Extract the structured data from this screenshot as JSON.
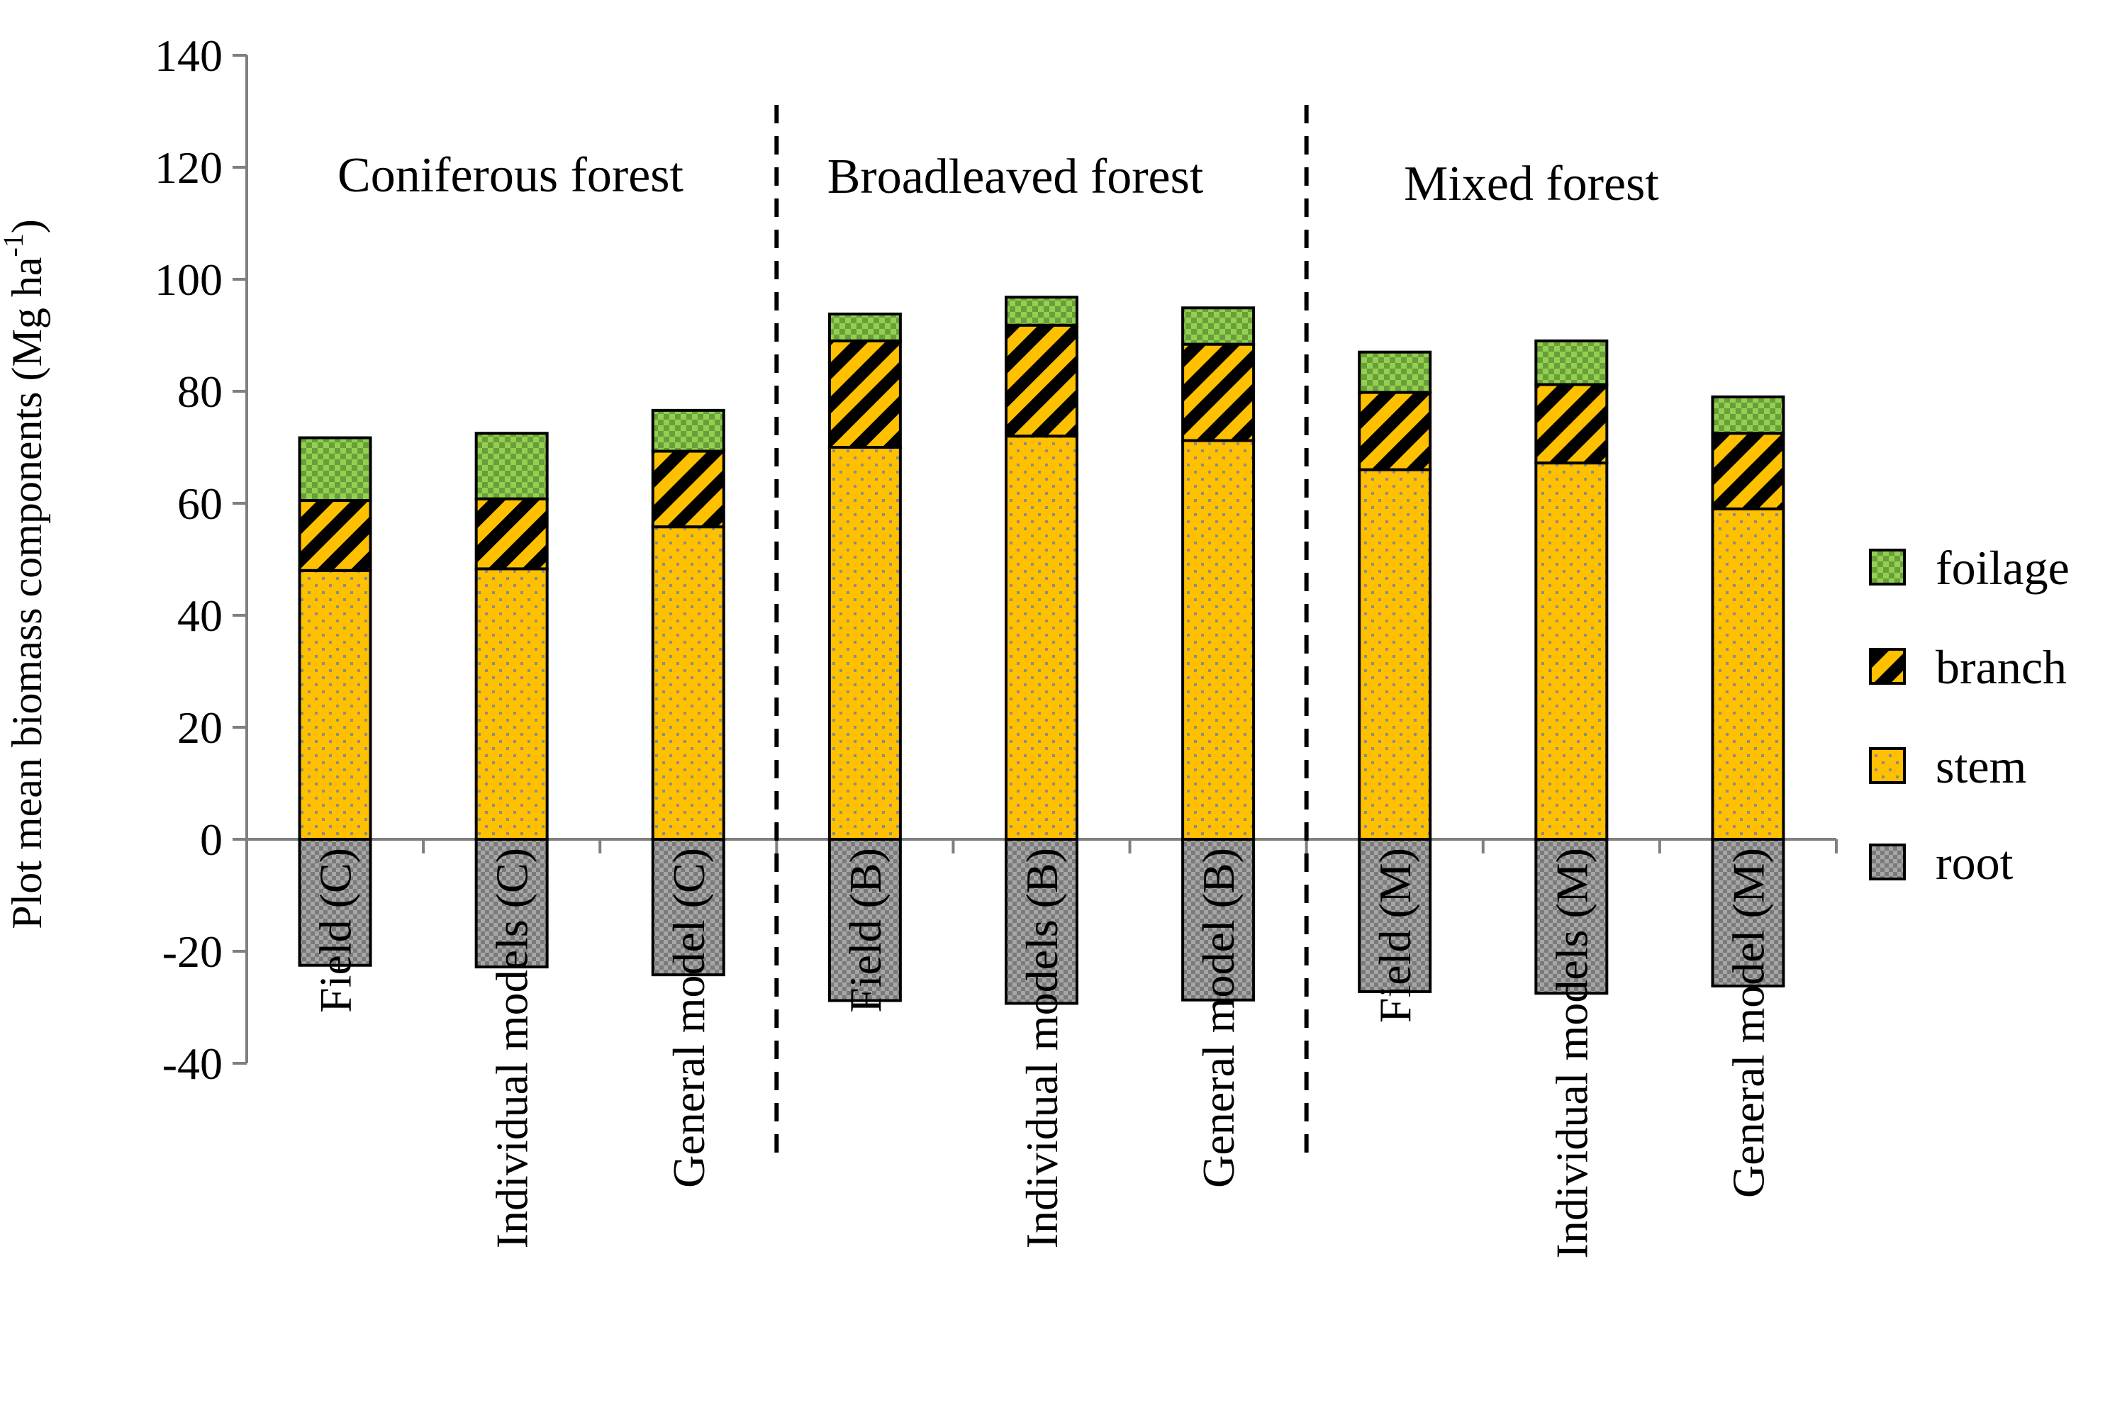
{
  "chart_data": {
    "type": "bar",
    "stacked": true,
    "ylabel": "Plot mean biomass components (Mg ha",
    "ylabel_sup": "-1",
    "ylabel_end": ")",
    "ylim": [
      -40,
      140
    ],
    "yticks": [
      -40,
      -20,
      0,
      20,
      40,
      60,
      80,
      100,
      120,
      140
    ],
    "categories": [
      "Field (C)",
      "Individual models (C)",
      "General model (C)",
      "Field (B)",
      "Individual models (B)",
      "General model (B)",
      "Field (M)",
      "Individual models (M)",
      "General model (M)"
    ],
    "series": [
      {
        "name": "root",
        "color": "#A6A6A6",
        "values": [
          -22.5,
          -22.8,
          -24.2,
          -28.8,
          -29.3,
          -28.7,
          -27.2,
          -27.5,
          -26.2
        ]
      },
      {
        "name": "stem",
        "color": "#FFC000",
        "values": [
          48.0,
          48.3,
          55.8,
          70.0,
          72.0,
          71.2,
          66.0,
          67.2,
          59.0
        ]
      },
      {
        "name": "branch",
        "color": "#FFC000",
        "values": [
          12.5,
          12.5,
          13.5,
          19.0,
          19.8,
          17.2,
          13.8,
          14.0,
          13.5
        ]
      },
      {
        "name": "foilage",
        "color": "#92D050",
        "values": [
          11.2,
          11.7,
          7.3,
          4.8,
          5.0,
          6.5,
          7.2,
          7.8,
          6.5
        ]
      }
    ],
    "groups": [
      {
        "label": "Coniferous forest"
      },
      {
        "label": "Broadleaved forest"
      },
      {
        "label": "Mixed forest"
      }
    ],
    "legend_order": [
      "foilage",
      "branch",
      "stem",
      "root"
    ],
    "legend_position": "right"
  }
}
